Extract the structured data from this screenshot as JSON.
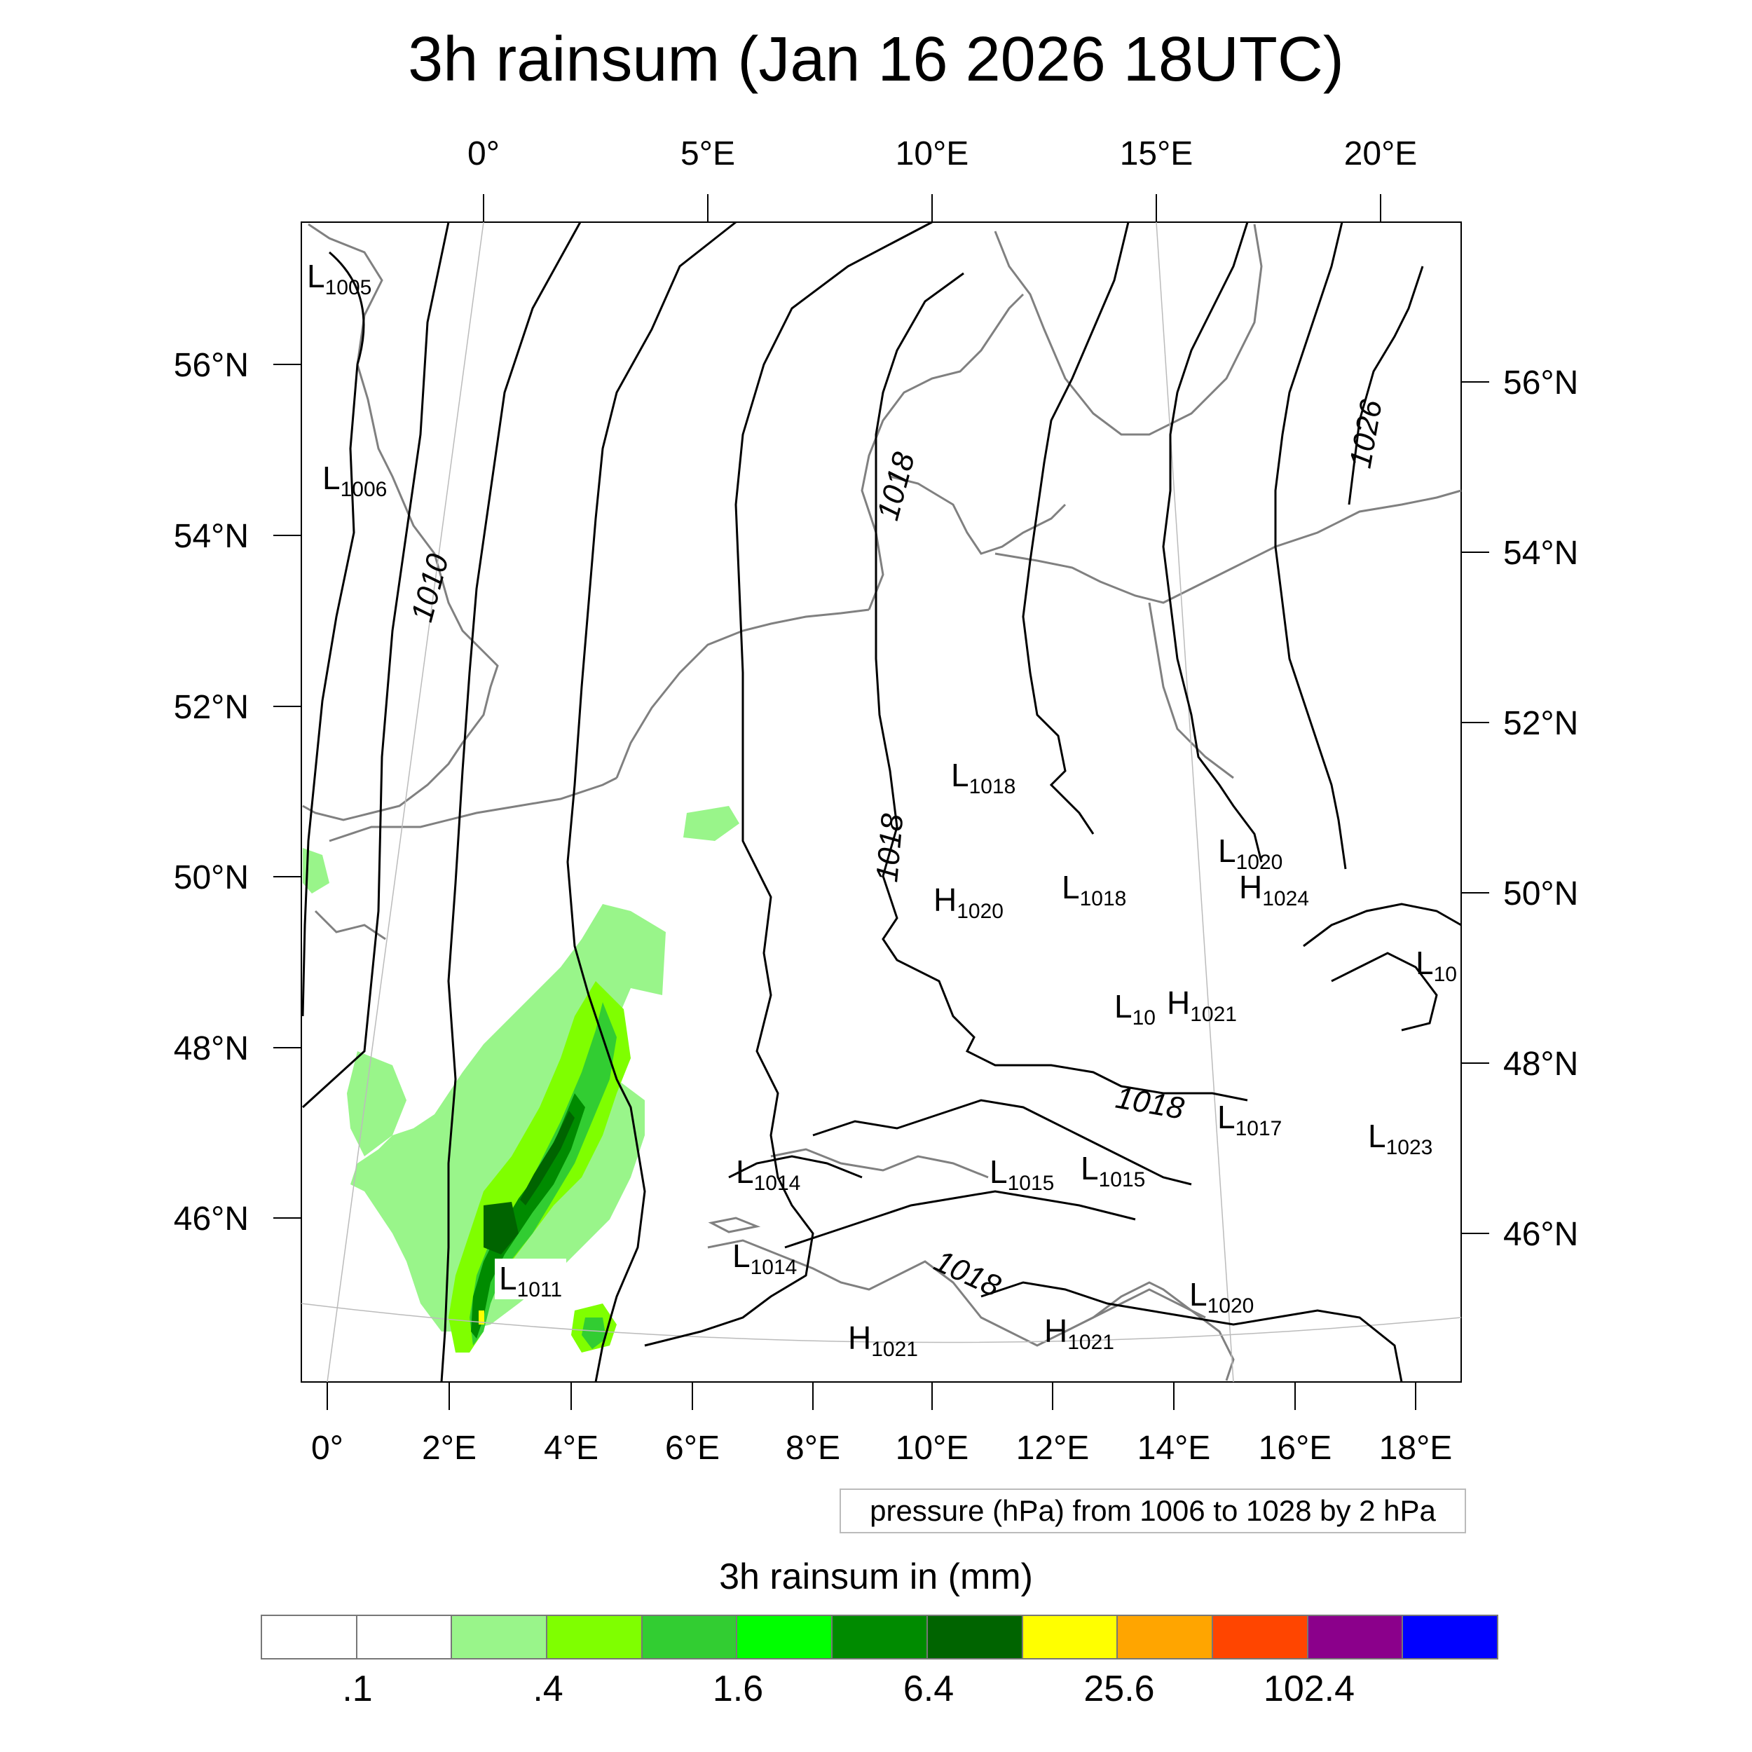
{
  "title": "3h rainsum (Jan 16 2026 18UTC)",
  "map": {
    "top_lon_labels": [
      "0°",
      "5°E",
      "10°E",
      "15°E",
      "20°E"
    ],
    "bottom_lon_labels": [
      "0°",
      "2°E",
      "4°E",
      "6°E",
      "8°E",
      "10°E",
      "12°E",
      "14°E",
      "16°E",
      "18°E"
    ],
    "left_lat_labels": [
      "56°N",
      "54°N",
      "52°N",
      "50°N",
      "48°N",
      "46°N"
    ],
    "right_lat_labels": [
      "56°N",
      "54°N",
      "52°N",
      "50°N",
      "48°N",
      "46°N"
    ],
    "contour_labels": [
      "1010",
      "1018",
      "1018",
      "1018",
      "1018",
      "1026"
    ],
    "pressure_centers": [
      {
        "type": "L",
        "value": "1005"
      },
      {
        "type": "L",
        "value": "1006"
      },
      {
        "type": "L",
        "value": "1018"
      },
      {
        "type": "L",
        "value": "1020"
      },
      {
        "type": "H",
        "value": "1024"
      },
      {
        "type": "H",
        "value": "1020"
      },
      {
        "type": "L",
        "value": "1018"
      },
      {
        "type": "L",
        "value": "10"
      },
      {
        "type": "H",
        "value": "1021"
      },
      {
        "type": "L",
        "value": "1017"
      },
      {
        "type": "L",
        "value": "1023"
      },
      {
        "type": "L",
        "value": "1014"
      },
      {
        "type": "L",
        "value": "1015"
      },
      {
        "type": "L",
        "value": "1015"
      },
      {
        "type": "L",
        "value": "1014"
      },
      {
        "type": "L",
        "value": "1011"
      },
      {
        "type": "H",
        "value": "1021"
      },
      {
        "type": "H",
        "value": "1021"
      },
      {
        "type": "L",
        "value": "1020"
      },
      {
        "type": "L",
        "value": "10"
      }
    ]
  },
  "pressure_note": "pressure (hPa) from 1006 to 1028 by 2 hPa",
  "colorbar": {
    "title": "3h rainsum in (mm)",
    "colors": [
      "#ffffff",
      "#ffffff",
      "#99f58a",
      "#7fff00",
      "#32cd32",
      "#00ff00",
      "#008b00",
      "#006400",
      "#ffff00",
      "#ffa500",
      "#ff4500",
      "#8b008b",
      "#0000ff"
    ],
    "tick_labels": [
      ".1",
      ".4",
      "1.6",
      "6.4",
      "25.6",
      "102.4"
    ]
  },
  "colors": {
    "coast": "#808080",
    "contour": "#000000",
    "rain_light": "#99f58a",
    "rain_medium": "#7fff00",
    "rain_heavy": "#32cd32",
    "rain_very_heavy": "#008b00",
    "rain_extreme": "#006400"
  }
}
